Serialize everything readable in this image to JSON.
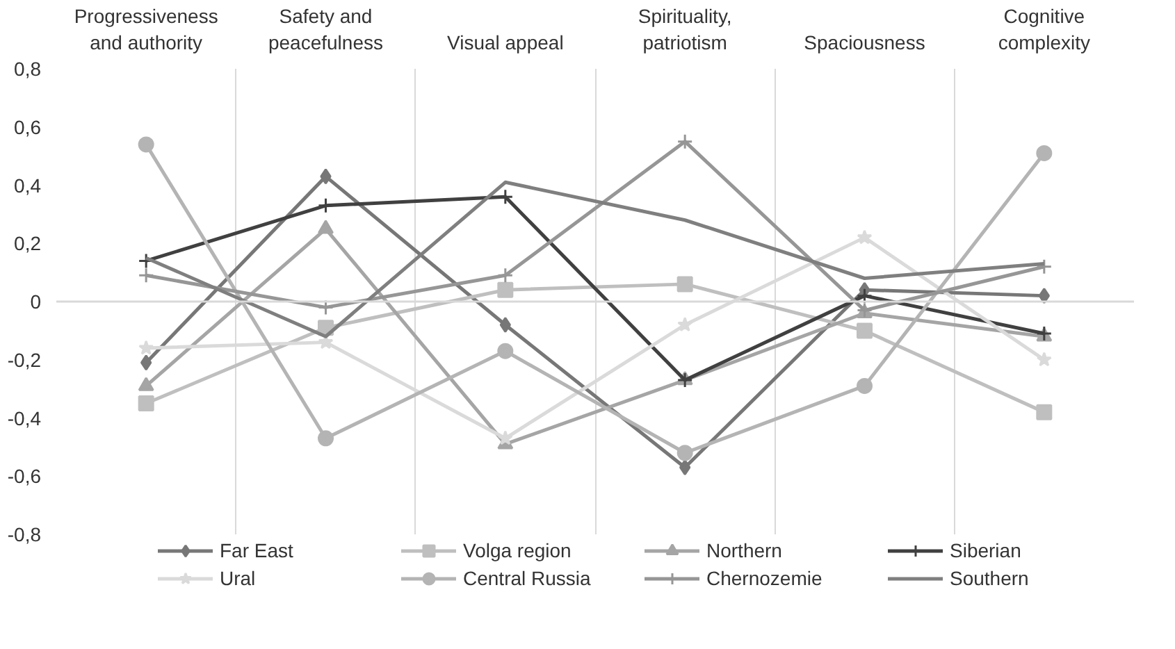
{
  "chart_data": {
    "type": "line",
    "categories": [
      "Progressiveness and authority",
      "Safety and peacefulness",
      "Visual appeal",
      "Spirituality, patriotism",
      "Spaciousness",
      "Cognitive complexity"
    ],
    "series": [
      {
        "name": "Far East",
        "color": "#777777",
        "marker": "diamond",
        "values": [
          -0.21,
          0.43,
          -0.08,
          -0.57,
          0.04,
          0.02
        ]
      },
      {
        "name": "Volga region",
        "color": "#bfbfbf",
        "marker": "square",
        "values": [
          -0.35,
          -0.09,
          0.04,
          0.06,
          -0.1,
          -0.38
        ]
      },
      {
        "name": "Northern",
        "color": "#a5a5a5",
        "marker": "triangle",
        "values": [
          -0.29,
          0.25,
          -0.49,
          -0.27,
          -0.04,
          -0.12
        ]
      },
      {
        "name": "Siberian",
        "color": "#404040",
        "marker": "cross",
        "values": [
          0.14,
          0.33,
          0.36,
          -0.27,
          0.02,
          -0.11
        ]
      },
      {
        "name": "Ural",
        "color": "#dadada",
        "marker": "star",
        "values": [
          -0.16,
          -0.14,
          -0.47,
          -0.08,
          0.22,
          -0.2
        ]
      },
      {
        "name": "Central Russia",
        "color": "#b4b4b4",
        "marker": "circle",
        "values": [
          0.54,
          -0.47,
          -0.17,
          -0.52,
          -0.29,
          0.51
        ]
      },
      {
        "name": "Chernozemie",
        "color": "#969696",
        "marker": "cross",
        "values": [
          0.09,
          -0.02,
          0.09,
          0.55,
          -0.03,
          0.12
        ]
      },
      {
        "name": "Southern",
        "color": "#7f7f7f",
        "marker": "none",
        "values": [
          0.15,
          -0.12,
          0.41,
          0.28,
          0.08,
          0.13
        ]
      }
    ],
    "ylim": [
      -0.8,
      0.8
    ],
    "yticks": [
      {
        "value": -0.8,
        "label": "-0,8"
      },
      {
        "value": -0.6,
        "label": "-0,6"
      },
      {
        "value": -0.4,
        "label": "-0,4"
      },
      {
        "value": -0.2,
        "label": "-0,2"
      },
      0,
      {
        "value": 0.2,
        "label": "0,2"
      },
      {
        "value": 0.4,
        "label": "0,4"
      },
      {
        "value": 0.6,
        "label": "0,6"
      },
      {
        "value": 0.8,
        "label": "0,8"
      }
    ],
    "grid": "x",
    "legend": "bottom",
    "line_style": "solid"
  }
}
